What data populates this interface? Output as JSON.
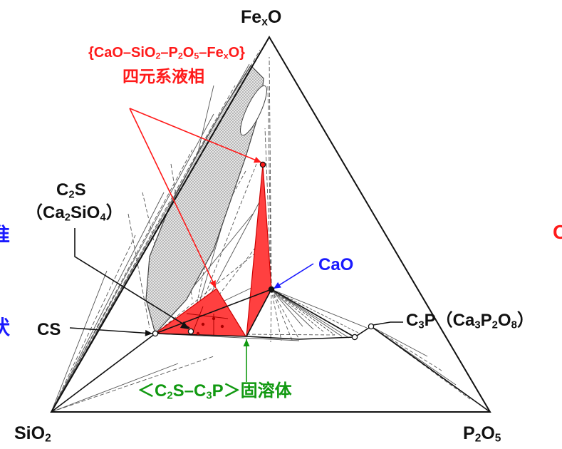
{
  "vertices": {
    "top": {
      "main": "Fe",
      "sub": "x",
      "tail": "O"
    },
    "bottom_left": {
      "main": "SiO",
      "sub": "2"
    },
    "bottom_right": {
      "main": "P",
      "sub1": "2",
      "mid": "O",
      "sub2": "5"
    }
  },
  "liquid_label": {
    "line1": {
      "a": "{CaO–SiO",
      "s1": "2",
      "b": "–P",
      "s2": "2",
      "c": "O",
      "s3": "5",
      "d": "–Fe",
      "s4": "x",
      "e": "O}"
    },
    "line2": "四元系液相",
    "color": "#ff1a1a"
  },
  "c2s_label": {
    "short": {
      "a": "C",
      "s": "2",
      "b": "S"
    },
    "formula": {
      "a": "（Ca",
      "s1": "2",
      "b": "SiO",
      "s2": "4",
      "c": "）"
    }
  },
  "cs_label": "CS",
  "cao_label": {
    "text": "CaO",
    "color": "#1a1aff"
  },
  "c3p_label": {
    "a": "C",
    "s1": "3",
    "b": "P（Ca",
    "s2": "3",
    "c": "P",
    "s3": "2",
    "d": "O",
    "s4": "8",
    "e": "）"
  },
  "solid_solution_label": {
    "a": "＜C",
    "s1": "2",
    "b": "S–C",
    "s2": "3",
    "c": "P＞固溶体",
    "color": "#119911"
  },
  "edge_text": {
    "left_chars": [
      "准",
      "·",
      "状"
    ],
    "left_color": "#1a1aff",
    "right_char": "C",
    "right_color": "#ff1a1a"
  }
}
